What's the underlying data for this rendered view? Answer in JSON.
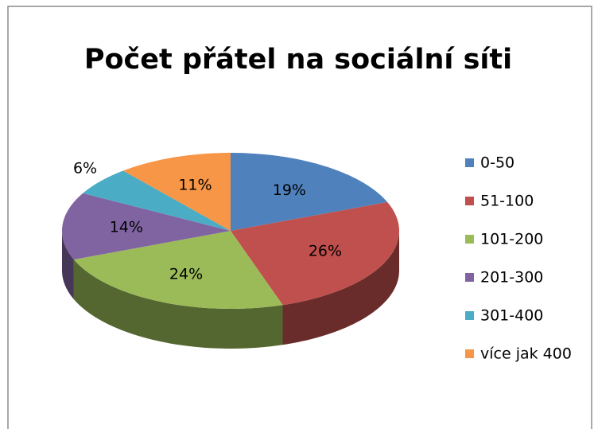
{
  "chart_data": {
    "type": "pie",
    "title": "Počet přátel na sociální síti",
    "categories": [
      "0-50",
      "51-100",
      "101-200",
      "201-300",
      "301-400",
      "více jak 400"
    ],
    "values": [
      19,
      26,
      24,
      14,
      6,
      11
    ],
    "value_labels": [
      "19%",
      "26%",
      "24%",
      "14%",
      "6%",
      "11%"
    ],
    "colors": [
      "#4f81bd",
      "#c0504d",
      "#9bbb59",
      "#8064a2",
      "#4bacc6",
      "#f79646"
    ],
    "legend": "right"
  }
}
